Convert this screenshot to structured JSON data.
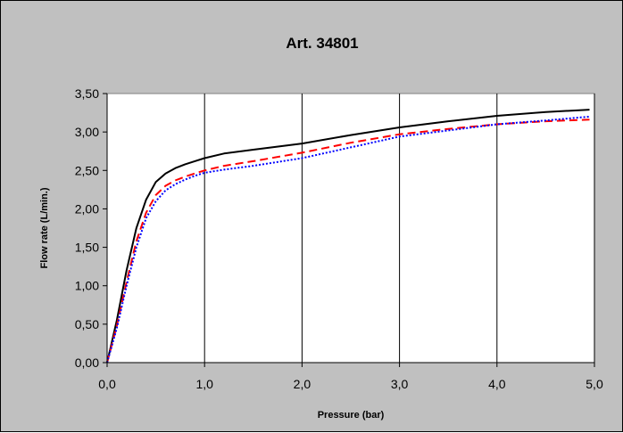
{
  "chart_data": {
    "type": "line",
    "title": "Art. 34801",
    "xlabel": "Pressure (bar)",
    "ylabel": "Flow rate (L/min.)",
    "xlim": [
      0,
      5
    ],
    "ylim": [
      0,
      3.5
    ],
    "x_ticks": [
      "0,0",
      "1,0",
      "2,0",
      "3,0",
      "4,0",
      "5,0"
    ],
    "y_ticks": [
      "0,00",
      "0,50",
      "1,00",
      "1,50",
      "2,00",
      "2,50",
      "3,00",
      "3,50"
    ],
    "grid": "vertical",
    "legend": "none",
    "plot_background": "#ffffff",
    "chart_background": "#c0c0c0",
    "series": [
      {
        "color": "#000000",
        "style": "solid",
        "x": [
          0,
          0.1,
          0.2,
          0.3,
          0.4,
          0.5,
          0.6,
          0.7,
          0.8,
          0.9,
          1.0,
          1.2,
          1.5,
          2.0,
          2.5,
          3.0,
          3.5,
          4.0,
          4.5,
          4.95
        ],
        "y": [
          0,
          0.55,
          1.2,
          1.75,
          2.12,
          2.35,
          2.46,
          2.53,
          2.58,
          2.62,
          2.66,
          2.72,
          2.77,
          2.85,
          2.96,
          3.06,
          3.14,
          3.21,
          3.26,
          3.29
        ]
      },
      {
        "color": "#ff0000",
        "style": "dashed",
        "x": [
          0,
          0.1,
          0.2,
          0.3,
          0.4,
          0.5,
          0.6,
          0.7,
          0.8,
          0.9,
          1.0,
          1.2,
          1.5,
          2.0,
          2.5,
          3.0,
          3.5,
          4.0,
          4.5,
          4.95
        ],
        "y": [
          0,
          0.48,
          1.05,
          1.58,
          1.95,
          2.18,
          2.3,
          2.37,
          2.42,
          2.46,
          2.5,
          2.56,
          2.62,
          2.73,
          2.86,
          2.97,
          3.04,
          3.1,
          3.14,
          3.16
        ]
      },
      {
        "color": "#0000ff",
        "style": "dotted",
        "x": [
          0,
          0.1,
          0.2,
          0.3,
          0.4,
          0.5,
          0.6,
          0.7,
          0.8,
          0.9,
          1.0,
          1.2,
          1.5,
          2.0,
          2.5,
          3.0,
          3.5,
          4.0,
          4.5,
          4.95
        ],
        "y": [
          0,
          0.45,
          1.0,
          1.5,
          1.88,
          2.1,
          2.24,
          2.32,
          2.38,
          2.43,
          2.47,
          2.51,
          2.56,
          2.66,
          2.8,
          2.94,
          3.02,
          3.1,
          3.15,
          3.2
        ]
      }
    ]
  }
}
